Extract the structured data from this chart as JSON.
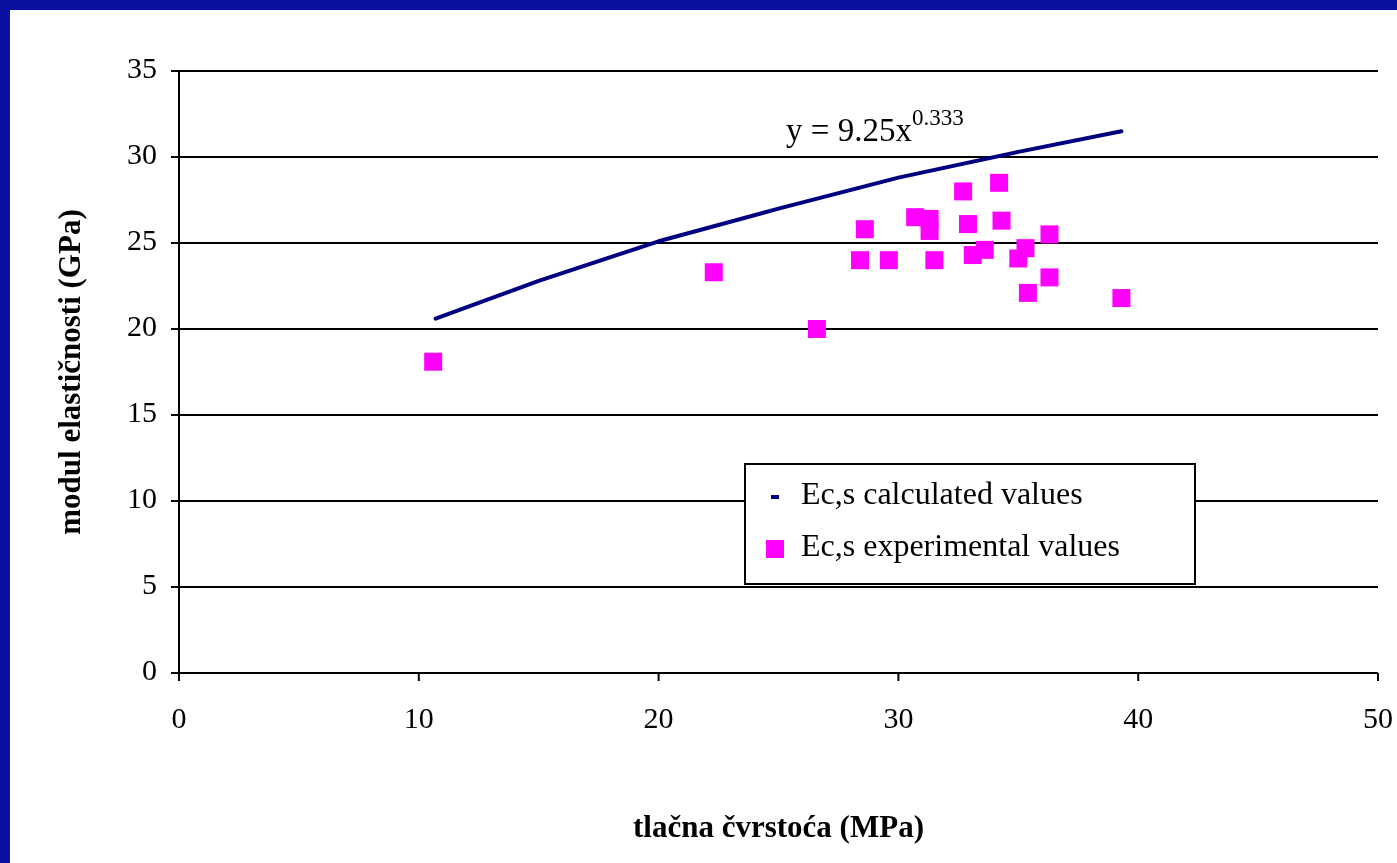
{
  "chart_data": {
    "type": "scatter",
    "xlabel": "tlačna čvrstoća (MPa)",
    "ylabel": "modul elastičnosti (GPa)",
    "xlim": [
      0,
      50
    ],
    "xticks": [
      0,
      10,
      20,
      30,
      40,
      50
    ],
    "ylim": [
      0,
      35
    ],
    "yticks": [
      0,
      5,
      10,
      15,
      20,
      25,
      30,
      35
    ],
    "grid": "y",
    "legend": "bottom right",
    "marker": "square",
    "annotations": [
      "y = 9.25x$^{0.333}$"
    ],
    "series": [
      {
        "name": "Ec,s calculated values",
        "type": "line",
        "color": "#000080",
        "marker": "none",
        "x": [
          10.7,
          15,
          20,
          25,
          30,
          35,
          39.3
        ],
        "values": [
          20.6,
          22.8,
          25.1,
          27.0,
          28.8,
          30.3,
          31.5
        ]
      },
      {
        "name": "Ec,s experimental values",
        "color": "#ff00ff",
        "x": [
          10.6,
          22.3,
          26.6,
          28.6,
          28.4,
          29.6,
          30.7,
          31.3,
          31.3,
          31.5,
          32.7,
          32.9,
          33.1,
          33.6,
          34.2,
          34.3,
          35.0,
          35.3,
          36.3,
          36.3,
          35.4,
          39.3
        ],
        "values": [
          18.1,
          23.3,
          20.0,
          25.8,
          24.0,
          24.0,
          26.5,
          26.4,
          25.7,
          24.0,
          28.0,
          26.1,
          24.3,
          24.6,
          28.5,
          26.3,
          24.1,
          24.7,
          25.5,
          23.0,
          22.1,
          21.8
        ]
      }
    ]
  }
}
